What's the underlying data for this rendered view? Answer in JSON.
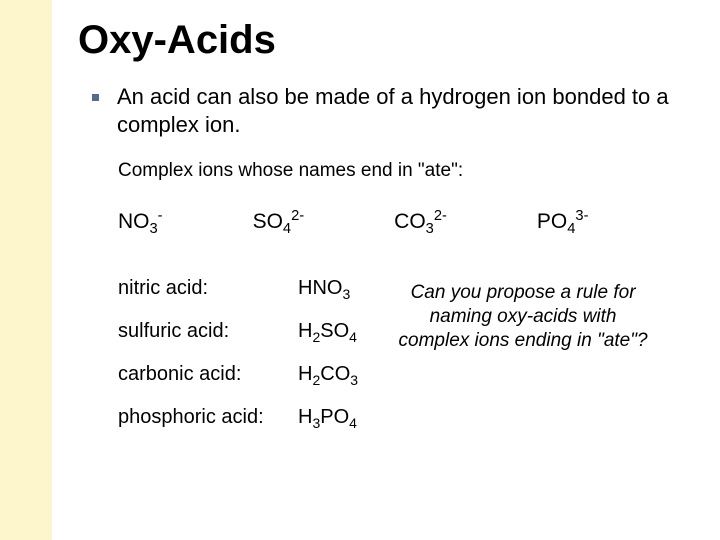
{
  "colors": {
    "sidebar_bg": "#fdf6cc",
    "bullet": "#566b89",
    "text": "#000000",
    "page_bg": "#ffffff"
  },
  "title": "Oxy-Acids",
  "intro": "An acid can also be made of a hydrogen ion bonded to a complex ion.",
  "subhead": "Complex ions whose names end in \"ate\":",
  "ions": [
    {
      "base": "NO",
      "sub": "3",
      "sup": "-"
    },
    {
      "base": "SO",
      "sub": "4",
      "sup": "2-"
    },
    {
      "base": "CO",
      "sub": "3",
      "sup": "2-"
    },
    {
      "base": "PO",
      "sub": "4",
      "sup": "3-"
    }
  ],
  "acids": [
    {
      "name": "nitric acid:",
      "pre": "HNO",
      "sub1": "3",
      "mid": "",
      "sub2": ""
    },
    {
      "name": "sulfuric acid:",
      "pre": "H",
      "sub1": "2",
      "mid": "SO",
      "sub2": "4"
    },
    {
      "name": "carbonic acid:",
      "pre": "H",
      "sub1": "2",
      "mid": "CO",
      "sub2": "3"
    },
    {
      "name": "phosphoric acid:",
      "pre": "H",
      "sub1": "3",
      "mid": "PO",
      "sub2": "4"
    }
  ],
  "question": "Can you propose a rule for naming oxy-acids with complex ions ending in \"ate\"?"
}
